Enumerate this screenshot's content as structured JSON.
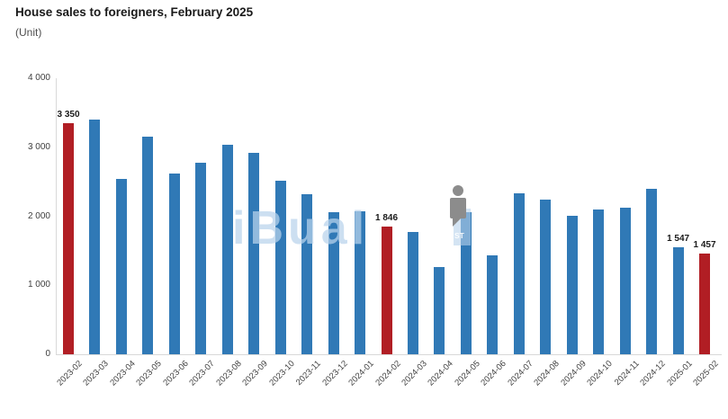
{
  "header": {
    "title": "House sales to foreigners, February 2025",
    "subtitle": "(Unit)"
  },
  "chart_data": {
    "type": "bar",
    "title": "House sales to foreigners, February 2025",
    "ylabel": "(Unit)",
    "xlabel": "",
    "categories": [
      "2023-02",
      "2023-03",
      "2023-04",
      "2023-05",
      "2023-06",
      "2023-07",
      "2023-08",
      "2023-09",
      "2023-10",
      "2023-11",
      "2023-12",
      "2024-01",
      "2024-02",
      "2024-03",
      "2024-04",
      "2024-05",
      "2024-06",
      "2024-07",
      "2024-08",
      "2024-09",
      "2024-10",
      "2024-11",
      "2024-12",
      "2025-01",
      "2025-02"
    ],
    "values": [
      3350,
      3400,
      2540,
      3150,
      2620,
      2780,
      3040,
      2920,
      2520,
      2320,
      2060,
      2070,
      1846,
      1770,
      1260,
      2060,
      1430,
      2330,
      2240,
      2010,
      2100,
      2130,
      2400,
      1547,
      1457
    ],
    "highlight_indices": [
      0,
      12,
      24
    ],
    "bar_color": "#3079b6",
    "highlight_color": "#b11e24",
    "data_labels": [
      {
        "index": 0,
        "label": "3 350"
      },
      {
        "index": 12,
        "label": "1 846"
      },
      {
        "index": 23,
        "label": "1 547"
      },
      {
        "index": 24,
        "label": "1 457"
      }
    ],
    "ylim": [
      0,
      4000
    ],
    "yticks": [
      {
        "value": 4000,
        "label": "4 000"
      },
      {
        "value": 3000,
        "label": "3 000"
      },
      {
        "value": 2000,
        "label": "2 000"
      },
      {
        "value": 1000,
        "label": "1 000"
      },
      {
        "value": 0,
        "label": "0"
      }
    ],
    "grid": false,
    "legend": false
  },
  "watermark": {
    "letters_fragment": "iBual",
    "st_fragment": "ST",
    "letters_color": "#b8d2ea",
    "person_color": "#8c8c8c"
  }
}
